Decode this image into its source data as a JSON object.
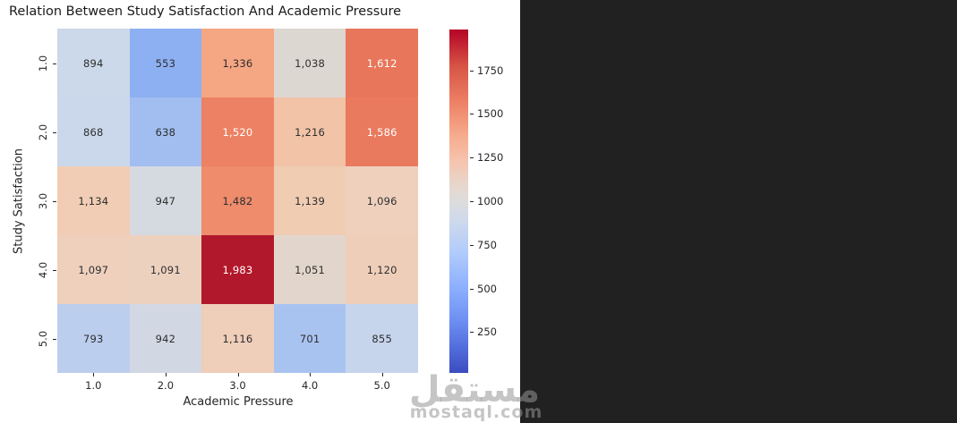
{
  "figure": {
    "plot_background": "#ffffff",
    "panel_background": "#212121"
  },
  "chart_data": {
    "type": "heatmap",
    "title": "Relation Between Study Satisfaction And Academic Pressure",
    "xlabel": "Academic Pressure",
    "ylabel": "Study Satisfaction",
    "x_tick_labels": [
      "1.0",
      "2.0",
      "3.0",
      "4.0",
      "5.0"
    ],
    "y_tick_labels": [
      "1.0",
      "2.0",
      "3.0",
      "4.0",
      "5.0"
    ],
    "values": [
      [
        894,
        553,
        1336,
        1038,
        1612
      ],
      [
        868,
        638,
        1520,
        1216,
        1586
      ],
      [
        1134,
        947,
        1482,
        1139,
        1096
      ],
      [
        1097,
        1091,
        1983,
        1051,
        1120
      ],
      [
        793,
        942,
        1116,
        701,
        855
      ]
    ],
    "cell_labels": [
      [
        "894",
        "553",
        "1,336",
        "1,038",
        "1,612"
      ],
      [
        "868",
        "638",
        "1,520",
        "1,216",
        "1,586"
      ],
      [
        "1,134",
        "947",
        "1,482",
        "1,139",
        "1,096"
      ],
      [
        "1,097",
        "1,091",
        "1,983",
        "1,051",
        "1,120"
      ],
      [
        "793",
        "942",
        "1,116",
        "701",
        "855"
      ]
    ],
    "cell_colors": [
      [
        "#ccd9ea",
        "#8db0f2",
        "#f5a683",
        "#ddd7d1",
        "#e8765b"
      ],
      [
        "#cbd8eb",
        "#a2bef1",
        "#ec8263",
        "#f2c3a7",
        "#e97a5e"
      ],
      [
        "#f0cdb4",
        "#d5d9e0",
        "#ee8c6c",
        "#f0ccb3",
        "#eed0bd"
      ],
      [
        "#eed0bd",
        "#edd1bf",
        "#b2182b",
        "#e2d6cc",
        "#efceb9"
      ],
      [
        "#bcceee",
        "#d2d8e3",
        "#efceba",
        "#a9c3f0",
        "#c6d4ec"
      ]
    ],
    "cell_text_colors": [
      [
        "dark",
        "dark",
        "dark",
        "dark",
        "white"
      ],
      [
        "dark",
        "dark",
        "white",
        "dark",
        "white"
      ],
      [
        "dark",
        "dark",
        "dark",
        "dark",
        "dark"
      ],
      [
        "dark",
        "dark",
        "white",
        "dark",
        "dark"
      ],
      [
        "dark",
        "dark",
        "dark",
        "dark",
        "dark"
      ]
    ],
    "dark_text_color": "#2e2e2e",
    "white_text_color": "#ffffff",
    "colormap": "coolwarm",
    "grid": false,
    "colorbar": {
      "position": "right",
      "tick_values": [
        1750,
        1500,
        1250,
        1000,
        750,
        500,
        250
      ],
      "tick_labels": [
        "1750",
        "1500",
        "1250",
        "1000",
        "750",
        "500",
        "250"
      ],
      "vmin": 17,
      "vmax": 1983
    }
  },
  "watermark": {
    "arabic_text": "مستقل",
    "latin_text": "mostaql.com"
  }
}
